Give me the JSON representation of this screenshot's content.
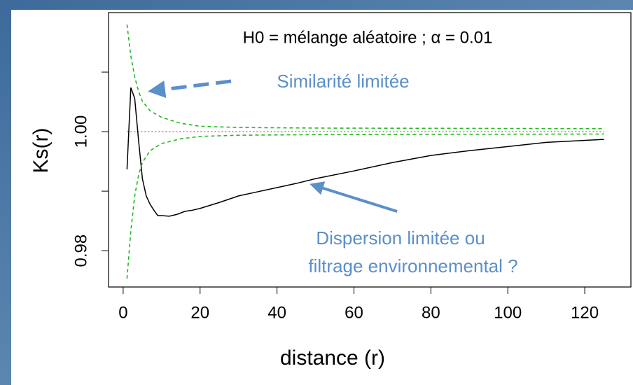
{
  "chart_data": {
    "type": "line",
    "xlabel": "distance (r)",
    "ylabel": "Ks(r)",
    "annotations": [
      "H0 = mélange aléatoire ; α = 0.01",
      "Similarité limitée",
      "Dispersion limitée ou",
      "filtrage environnemental ?"
    ],
    "xlim": [
      -3.8,
      132
    ],
    "ylim": [
      0.9739,
      1.02
    ],
    "xticks": [
      0,
      20,
      40,
      60,
      80,
      100,
      120
    ],
    "yticks": [
      0.98,
      {
        "value": 0.99,
        "label": null
      },
      {
        "value": 1.0,
        "label": "1.00"
      },
      {
        "value": 1.01,
        "label": null
      }
    ],
    "reference_line": {
      "value": 1.0,
      "color": "#e03030"
    },
    "series": [
      {
        "color": "#000000",
        "dash": "solid",
        "x": [
          1,
          2,
          3,
          4,
          5,
          6,
          7,
          8,
          9,
          10,
          12,
          14,
          16,
          18,
          20,
          25,
          30,
          35,
          40,
          45,
          50,
          60,
          70,
          80,
          90,
          100,
          110,
          125
        ],
        "values": [
          0.99365,
          1.0074,
          1.0056,
          0.9986,
          0.9921,
          0.9892,
          0.9878,
          0.9868,
          0.9859,
          0.9859,
          0.9858,
          0.9861,
          0.9866,
          0.9868,
          0.9871,
          0.9881,
          0.9892,
          0.9899,
          0.9906,
          0.9913,
          0.9921,
          0.9934,
          0.9948,
          0.996,
          0.9968,
          0.9975,
          0.9982,
          0.9987
        ]
      },
      {
        "color": "#22bb22",
        "dash": "dashed",
        "x": [
          1,
          2,
          3,
          4,
          5,
          7,
          10,
          15,
          20,
          30,
          50,
          125
        ],
        "values": [
          1.018,
          1.0127,
          1.0092,
          1.0068,
          1.0051,
          1.0035,
          1.0024,
          1.0014,
          1.0009,
          1.0007,
          1.0006,
          1.0005
        ]
      },
      {
        "color": "#22bb22",
        "dash": "dashed",
        "x": [
          1,
          2,
          3,
          4,
          5,
          7,
          10,
          15,
          20,
          30,
          50,
          125
        ],
        "values": [
          0.9753,
          0.9833,
          0.9892,
          0.9927,
          0.9948,
          0.9968,
          0.998,
          0.9988,
          0.9992,
          0.9994,
          0.9995,
          0.9996
        ]
      }
    ]
  }
}
